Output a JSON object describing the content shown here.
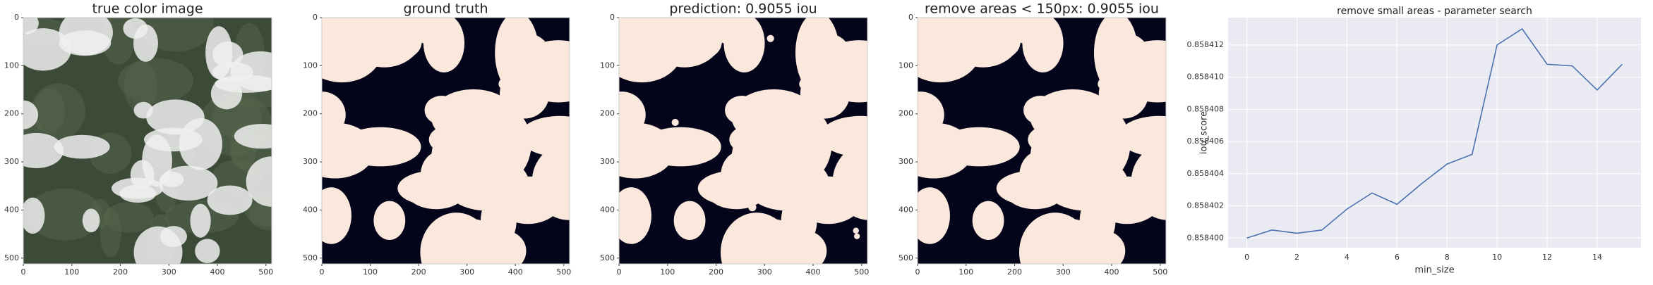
{
  "chart_data": [
    {
      "type": "image",
      "title": "true color image",
      "xlim": [
        0,
        512
      ],
      "ylim": [
        512,
        0
      ],
      "xticks": [
        0,
        100,
        200,
        300,
        400,
        500
      ],
      "yticks": [
        0,
        100,
        200,
        300,
        400,
        500
      ]
    },
    {
      "type": "image",
      "title": "ground truth",
      "xlim": [
        0,
        512
      ],
      "ylim": [
        512,
        0
      ],
      "xticks": [
        0,
        100,
        200,
        300,
        400,
        500
      ],
      "yticks": [
        0,
        100,
        200,
        300,
        400,
        500
      ]
    },
    {
      "type": "image",
      "title": "prediction: 0.9055 iou",
      "xlim": [
        0,
        512
      ],
      "ylim": [
        512,
        0
      ],
      "xticks": [
        0,
        100,
        200,
        300,
        400,
        500
      ],
      "yticks": [
        0,
        100,
        200,
        300,
        400,
        500
      ]
    },
    {
      "type": "image",
      "title": "remove areas < 150px: 0.9055 iou",
      "xlim": [
        0,
        512
      ],
      "ylim": [
        512,
        0
      ],
      "xticks": [
        0,
        100,
        200,
        300,
        400,
        500
      ],
      "yticks": [
        0,
        100,
        200,
        300,
        400,
        500
      ]
    },
    {
      "type": "line",
      "title": "remove small areas - parameter search",
      "x_label": "min_size",
      "y_label": "iou_score",
      "x": [
        0,
        1,
        2,
        3,
        4,
        5,
        6,
        7,
        8,
        9,
        10,
        11,
        12,
        13,
        14,
        15
      ],
      "values": [
        0.8584,
        0.8584005,
        0.8584003,
        0.8584005,
        0.8584018,
        0.8584028,
        0.8584021,
        0.8584034,
        0.8584046,
        0.8584052,
        0.858412,
        0.858413,
        0.8584108,
        0.8584107,
        0.8584092,
        0.8584108
      ],
      "color": "#4c72b0",
      "grid": true,
      "xlim": [
        -0.75,
        15.75
      ],
      "ylim": [
        0.8583994,
        0.8584137
      ],
      "xticks": [
        0,
        2,
        4,
        6,
        8,
        10,
        12,
        14
      ],
      "yticks": [
        {
          "value": 0.8584,
          "label": "0.858400"
        },
        0.858402,
        0.858404,
        0.858406,
        0.858408,
        {
          "value": 0.85841,
          "label": "0.858410"
        },
        0.858412
      ]
    }
  ]
}
